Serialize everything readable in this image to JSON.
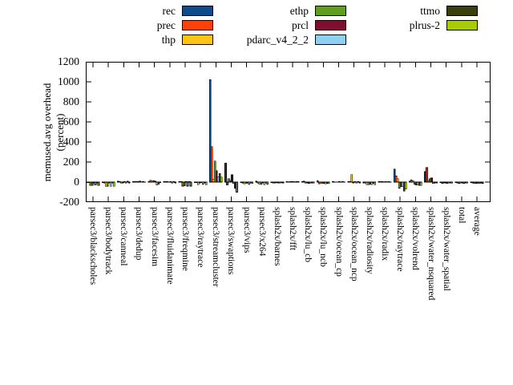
{
  "chart_data": {
    "type": "bar",
    "title": "",
    "ylabel": "memused.avg overhead (percent)",
    "ylabel_lines": [
      "memused.avg overhead",
      "(percent)"
    ],
    "ylim": [
      -200,
      1200
    ],
    "yticks": [
      -200,
      0,
      200,
      400,
      600,
      800,
      1000,
      1200
    ],
    "grid": false,
    "legend_position": "top",
    "bar_outline_color": "#000000",
    "categories": [
      "parsec3/blackscholes",
      "parsec3/bodytrack",
      "parsec3/canneal",
      "parsec3/dedup",
      "parsec3/facesim",
      "parsec3/fluidanimate",
      "parsec3/freqmine",
      "parsec3/raytrace",
      "parsec3/streamcluster",
      "parsec3/swaptions",
      "parsec3/vips",
      "parsec3/x264",
      "splash2x/barnes",
      "splash2x/fft",
      "splash2x/lu_cb",
      "splash2x/lu_ncb",
      "splash2x/ocean_cp",
      "splash2x/ocean_ncp",
      "splash2x/radiosity",
      "splash2x/radix",
      "splash2x/raytrace",
      "splash2x/volrend",
      "splash2x/water_nsquared",
      "splash2x/water_spatial",
      "total",
      "average"
    ],
    "series": [
      {
        "name": "rec",
        "color": "#0e4c8a",
        "values": [
          -5,
          -6,
          8,
          5,
          5,
          4,
          5,
          -5,
          1020,
          190,
          -5,
          8,
          -5,
          5,
          5,
          15,
          4,
          5,
          -8,
          5,
          130,
          10,
          105,
          -5,
          -5,
          -5
        ]
      },
      {
        "name": "prec",
        "color": "#fc4208",
        "values": [
          -5,
          -8,
          5,
          5,
          18,
          4,
          4,
          -5,
          355,
          -30,
          -8,
          -10,
          -10,
          3,
          8,
          -18,
          3,
          4,
          -10,
          4,
          60,
          20,
          145,
          -12,
          -8,
          -8
        ]
      },
      {
        "name": "thp",
        "color": "#fdc513",
        "values": [
          -35,
          -42,
          -10,
          5,
          15,
          4,
          -40,
          -25,
          30,
          35,
          -18,
          -22,
          -8,
          5,
          -10,
          -15,
          3,
          75,
          -25,
          4,
          35,
          15,
          15,
          -8,
          -12,
          -15
        ]
      },
      {
        "name": "ethp",
        "color": "#639c23",
        "values": [
          -33,
          -40,
          -8,
          4,
          12,
          3,
          -38,
          -8,
          210,
          15,
          -15,
          -20,
          -5,
          4,
          -8,
          -15,
          3,
          -8,
          -25,
          3,
          -60,
          -20,
          35,
          -8,
          -10,
          -12
        ]
      },
      {
        "name": "prcl",
        "color": "#7e0f2e",
        "values": [
          -8,
          -10,
          5,
          8,
          10,
          5,
          4,
          -5,
          115,
          75,
          -8,
          -8,
          -8,
          5,
          -12,
          -12,
          4,
          4,
          -20,
          5,
          -45,
          -30,
          40,
          -15,
          -8,
          -10
        ]
      },
      {
        "name": "pdarc_v4_2_2",
        "color": "#8dd0f0",
        "values": [
          -30,
          -42,
          -10,
          3,
          -30,
          -10,
          -40,
          -20,
          55,
          -15,
          -20,
          -25,
          -10,
          3,
          -10,
          -18,
          2,
          -10,
          -25,
          3,
          -45,
          -30,
          -15,
          -10,
          -12,
          -15
        ]
      },
      {
        "name": "ttmo",
        "color": "#3a3f0d",
        "values": [
          -8,
          -10,
          10,
          5,
          -20,
          4,
          5,
          -8,
          85,
          -60,
          -10,
          -10,
          -5,
          5,
          -8,
          -12,
          4,
          4,
          -15,
          4,
          -90,
          -35,
          -10,
          -8,
          -8,
          -10
        ]
      },
      {
        "name": "plrus-2",
        "color": "#a7cb0c",
        "values": [
          -35,
          -42,
          -8,
          3,
          -5,
          -8,
          -40,
          -25,
          50,
          -100,
          -15,
          -20,
          -8,
          4,
          -10,
          -15,
          3,
          -8,
          -25,
          3,
          -70,
          -35,
          -8,
          -10,
          -10,
          -12
        ]
      }
    ],
    "legend_columns": [
      [
        "rec",
        "prec",
        "thp"
      ],
      [
        "ethp",
        "prcl",
        "pdarc_v4_2_2"
      ],
      [
        "ttmo",
        "plrus-2"
      ]
    ]
  }
}
